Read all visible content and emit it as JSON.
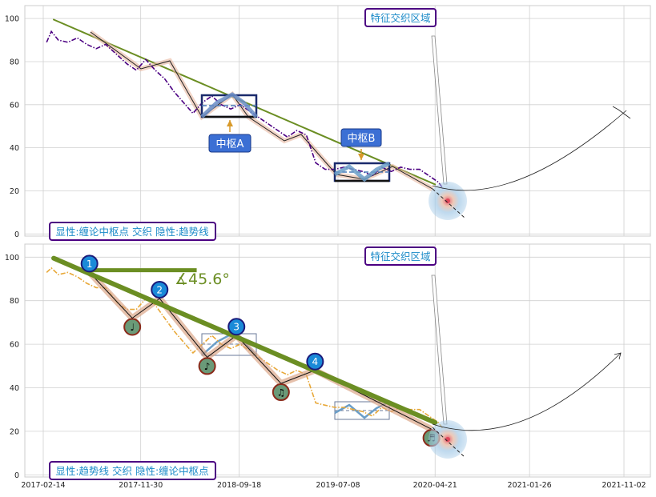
{
  "chart_data": [
    {
      "type": "line",
      "panel": "top",
      "ylim": [
        -1,
        106
      ],
      "yticks": [
        0,
        20,
        40,
        60,
        80,
        100
      ],
      "xticks": [
        "2017-02-14",
        "2017-11-30",
        "2018-09-18",
        "2019-07-08",
        "2020-04-21",
        "2021-01-26",
        "2021-11-02"
      ],
      "grid": true,
      "series": [
        {
          "style": "dash-dot",
          "color": "#4b0082",
          "x": [
            "2017-02-24",
            "2017-03-10",
            "2017-03-31",
            "2017-04-28",
            "2017-05-26",
            "2017-06-23",
            "2017-07-21",
            "2017-08-18",
            "2017-09-22",
            "2017-10-20",
            "2017-11-17",
            "2017-12-15",
            "2018-01-12",
            "2018-02-09",
            "2018-03-09",
            "2018-04-06",
            "2018-05-04",
            "2018-06-01",
            "2018-06-29",
            "2018-07-27",
            "2018-08-24",
            "2018-09-21",
            "2018-10-19",
            "2018-11-16",
            "2018-12-14",
            "2019-01-11",
            "2019-02-08",
            "2019-03-08",
            "2019-04-05",
            "2019-05-03",
            "2019-05-31",
            "2019-06-28",
            "2019-07-26",
            "2019-08-23",
            "2019-09-20",
            "2019-10-18",
            "2019-11-15",
            "2019-12-13",
            "2020-01-10",
            "2020-02-07",
            "2020-03-06",
            "2020-04-03",
            "2020-05-01",
            "2020-05-15"
          ],
          "values": [
            89,
            94,
            90,
            89,
            91,
            88,
            86,
            88,
            83,
            79,
            76,
            81,
            76,
            72,
            66,
            61,
            56,
            61,
            64,
            60,
            58,
            60,
            57,
            54,
            51,
            48,
            45,
            48,
            46,
            33,
            30,
            30,
            31,
            30,
            29,
            27,
            31,
            29,
            31,
            30,
            30,
            27,
            24,
            21
          ]
        }
      ],
      "trend_line": {
        "color": "#6b8e23",
        "x": [
          "2017-03-17",
          "2020-04-21"
        ],
        "y": [
          99.5,
          23
        ]
      },
      "zhongshu": [
        {
          "label": "中枢A",
          "x": [
            "2018-06-15",
            "2018-09-25"
          ],
          "y": [
            55,
            64
          ]
        },
        {
          "label": "中枢B",
          "x": [
            "2019-07-15",
            "2019-11-30"
          ],
          "y": [
            25,
            33
          ]
        }
      ],
      "annotation_feature": "特征交织区域",
      "legend_note": "显性:缠论中枢点 交织 隐性:趋势线"
    },
    {
      "type": "line",
      "panel": "bottom",
      "ylim": [
        -1,
        106
      ],
      "yticks": [
        0,
        20,
        40,
        60,
        80,
        100
      ],
      "xticks": [
        "2017-02-14",
        "2017-11-30",
        "2018-09-18",
        "2019-07-08",
        "2020-04-21",
        "2021-01-26",
        "2021-11-02"
      ],
      "grid": true,
      "series": [
        {
          "style": "dash-dot",
          "color": "#e8a838",
          "x": [
            "2017-02-24",
            "2017-03-10",
            "2017-03-31",
            "2017-04-28",
            "2017-05-26",
            "2017-06-23",
            "2017-07-21",
            "2017-08-18",
            "2017-09-22",
            "2017-10-20",
            "2017-11-17",
            "2017-12-15",
            "2018-01-12",
            "2018-02-09",
            "2018-03-09",
            "2018-04-06",
            "2018-05-04",
            "2018-06-01",
            "2018-06-29",
            "2018-07-27",
            "2018-08-24",
            "2018-09-21",
            "2018-10-19",
            "2018-11-16",
            "2018-12-14",
            "2019-01-11",
            "2019-02-08",
            "2019-03-08",
            "2019-04-05",
            "2019-05-03",
            "2019-05-31",
            "2019-06-28",
            "2019-07-26",
            "2019-08-23",
            "2019-09-20",
            "2019-10-18",
            "2019-11-15",
            "2019-12-13",
            "2020-01-10",
            "2020-02-07",
            "2020-03-06",
            "2020-04-03",
            "2020-05-01",
            "2020-05-15"
          ],
          "values": [
            93,
            95,
            92,
            93,
            91,
            88,
            86,
            86,
            79,
            76,
            76,
            81,
            78,
            72,
            66,
            61,
            56,
            60,
            64,
            60,
            58,
            60,
            57,
            54,
            51,
            48,
            46,
            48,
            46,
            33,
            32,
            31,
            31,
            30,
            29,
            27,
            31,
            29,
            31,
            30,
            30,
            27,
            24,
            21
          ]
        }
      ],
      "trend_line": {
        "color": "#6b8e23",
        "x": [
          "2017-03-17",
          "2020-04-21"
        ],
        "y": [
          99.5,
          24
        ]
      },
      "horizontal_ref": {
        "x": [
          "2017-07-01",
          "2018-05-15"
        ],
        "y": 94
      },
      "angle_label": "∡45.6°",
      "pivots": [
        {
          "label": "1",
          "kind": "high",
          "x": "2017-07-01",
          "y": 93
        },
        {
          "label": "♩",
          "kind": "low",
          "x": "2017-11-05",
          "y": 72
        },
        {
          "label": "2",
          "kind": "high",
          "x": "2018-01-25",
          "y": 81
        },
        {
          "label": "♪",
          "kind": "low",
          "x": "2018-06-15",
          "y": 54
        },
        {
          "label": "3",
          "kind": "high",
          "x": "2018-09-10",
          "y": 64
        },
        {
          "label": "♫",
          "kind": "low",
          "x": "2019-01-20",
          "y": 42
        },
        {
          "label": "4",
          "kind": "high",
          "x": "2019-05-01",
          "y": 48
        },
        {
          "label": "♬",
          "kind": "low",
          "x": "2020-04-10",
          "y": 21
        }
      ],
      "annotation_feature": "特征交织区域",
      "legend_note": "显性:趋势线 交织 隐性:缠论中枢点"
    }
  ]
}
